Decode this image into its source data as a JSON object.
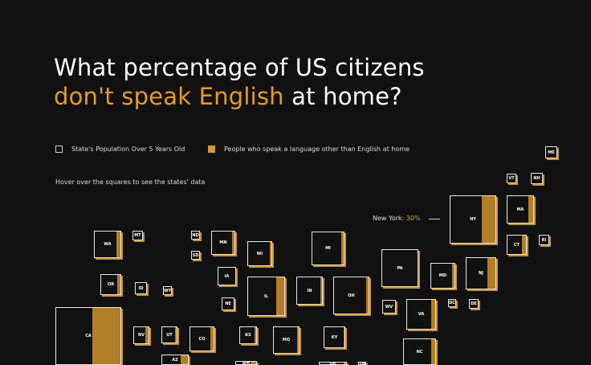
{
  "title": {
    "line1": "What percentage of US citizens",
    "line2_accent": "don't speak English",
    "line2_rest": " at home?"
  },
  "legend": {
    "population": "State's Population Over 5 Years Old",
    "language": "People who speak a language other than English at home"
  },
  "hint": "Hover over the squares to see the states' data",
  "callout": {
    "state": "New York:",
    "value": "30%"
  },
  "colors": {
    "background": "#111111",
    "accent": "#e79c22",
    "fill": "#b17f27",
    "border": "#e8e8e8"
  },
  "states": [
    {
      "abbr": "ME",
      "share": 0.0
    },
    {
      "abbr": "VT",
      "share": 0.0
    },
    {
      "abbr": "NH",
      "share": 0.0
    },
    {
      "abbr": "NY",
      "share": 0.3
    },
    {
      "abbr": "MA",
      "share": 0.2
    },
    {
      "abbr": "RI",
      "share": 0.0
    },
    {
      "abbr": "CT",
      "share": 0.2
    },
    {
      "abbr": "MT",
      "share": 0.0
    },
    {
      "abbr": "ND",
      "share": 0.0
    },
    {
      "abbr": "WA",
      "share": 0.17
    },
    {
      "abbr": "MN",
      "share": 0.1
    },
    {
      "abbr": "SD",
      "share": 0.0
    },
    {
      "abbr": "WI",
      "share": 0.08
    },
    {
      "abbr": "MI",
      "share": 0.08
    },
    {
      "abbr": "PA",
      "share": 0.0
    },
    {
      "abbr": "MD",
      "share": 0.1
    },
    {
      "abbr": "NJ",
      "share": 0.27
    },
    {
      "abbr": "IA",
      "share": 0.0
    },
    {
      "abbr": "OR",
      "share": 0.15
    },
    {
      "abbr": "ID",
      "share": 0.0
    },
    {
      "abbr": "WY",
      "share": 0.0
    },
    {
      "abbr": "IL",
      "share": 0.22
    },
    {
      "abbr": "IN",
      "share": 0.08
    },
    {
      "abbr": "OH",
      "share": 0.07
    },
    {
      "abbr": "NE",
      "share": 0.0
    },
    {
      "abbr": "DC",
      "share": 0.0
    },
    {
      "abbr": "DE",
      "share": 0.0
    },
    {
      "abbr": "WV",
      "share": 0.0
    },
    {
      "abbr": "VA",
      "share": 0.15
    },
    {
      "abbr": "CA",
      "share": 0.44
    },
    {
      "abbr": "NV",
      "share": 0.2
    },
    {
      "abbr": "UT",
      "share": 0.1
    },
    {
      "abbr": "CO",
      "share": 0.15
    },
    {
      "abbr": "KS",
      "share": 0.1
    },
    {
      "abbr": "MO",
      "share": 0.06
    },
    {
      "abbr": "KY",
      "share": 0.05
    },
    {
      "abbr": "NC",
      "share": 0.12
    },
    {
      "abbr": "AZ",
      "share": 0.27
    },
    {
      "abbr": "NM",
      "share": 0.3
    },
    {
      "abbr": "OK",
      "share": 0.1
    },
    {
      "abbr": "TN",
      "share": 0.07
    }
  ]
}
